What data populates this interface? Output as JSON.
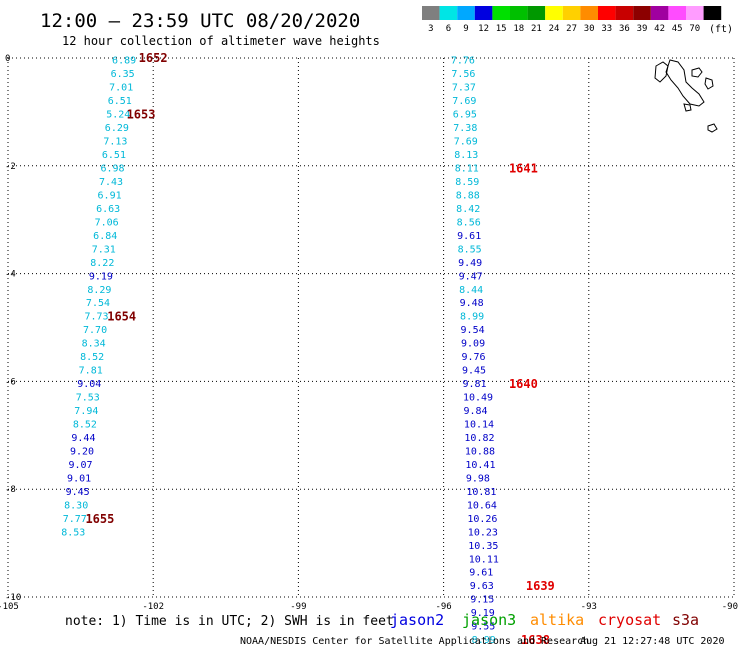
{
  "header": {
    "title": "12:00 — 23:59 UTC 08/20/2020",
    "subtitle": "12 hour collection of altimeter wave heights"
  },
  "scale_bar": {
    "unit": "(ft)",
    "swatches": [
      {
        "label": "3",
        "color": "#7f7f7f"
      },
      {
        "label": "6",
        "color": "#00e5e5"
      },
      {
        "label": "9",
        "color": "#00a8ff"
      },
      {
        "label": "12",
        "color": "#0000e0"
      },
      {
        "label": "15",
        "color": "#00e000"
      },
      {
        "label": "18",
        "color": "#00c000"
      },
      {
        "label": "21",
        "color": "#009800"
      },
      {
        "label": "24",
        "color": "#ffff00"
      },
      {
        "label": "27",
        "color": "#ffd000"
      },
      {
        "label": "30",
        "color": "#ff8c00"
      },
      {
        "label": "33",
        "color": "#ff0000"
      },
      {
        "label": "36",
        "color": "#c80000"
      },
      {
        "label": "39",
        "color": "#8c0000"
      },
      {
        "label": "42",
        "color": "#a000a0"
      },
      {
        "label": "45",
        "color": "#ff4cff"
      },
      {
        "label": "70",
        "color": "#ff9cff"
      },
      {
        "label": "",
        "color": "#000000"
      }
    ]
  },
  "map": {
    "lon_range": [
      -105,
      -90
    ],
    "lat_range": [
      -10,
      0
    ],
    "lon_ticks": [
      "-105",
      "-102",
      "-99",
      "-96",
      "-93",
      "-90"
    ],
    "lat_ticks": [
      "0",
      "-2",
      "-4",
      "-6",
      "-8",
      "-10"
    ],
    "tracks": [
      {
        "color_light": "#00b8d8",
        "color_dark": "#0000c8",
        "points": [
          {
            "lon": -102.85,
            "lat": -0.05,
            "v": "6.89",
            "c": 0
          },
          {
            "lon": -102.88,
            "lat": -0.3,
            "v": "6.35",
            "c": 0
          },
          {
            "lon": -102.91,
            "lat": -0.55,
            "v": "7.01",
            "c": 0
          },
          {
            "lon": -102.94,
            "lat": -0.8,
            "v": "6.51",
            "c": 0
          },
          {
            "lon": -102.97,
            "lat": -1.05,
            "v": "5.24",
            "c": 0
          },
          {
            "lon": -103.0,
            "lat": -1.3,
            "v": "6.29",
            "c": 0
          },
          {
            "lon": -103.03,
            "lat": -1.55,
            "v": "7.13",
            "c": 0
          },
          {
            "lon": -103.06,
            "lat": -1.8,
            "v": "6.51",
            "c": 0
          },
          {
            "lon": -103.09,
            "lat": -2.05,
            "v": "6.98",
            "c": 0
          },
          {
            "lon": -103.12,
            "lat": -2.3,
            "v": "7.43",
            "c": 0
          },
          {
            "lon": -103.15,
            "lat": -2.55,
            "v": "6.91",
            "c": 0
          },
          {
            "lon": -103.18,
            "lat": -2.8,
            "v": "6.63",
            "c": 0
          },
          {
            "lon": -103.21,
            "lat": -3.05,
            "v": "7.06",
            "c": 0
          },
          {
            "lon": -103.24,
            "lat": -3.3,
            "v": "6.84",
            "c": 0
          },
          {
            "lon": -103.27,
            "lat": -3.55,
            "v": "7.31",
            "c": 0
          },
          {
            "lon": -103.3,
            "lat": -3.8,
            "v": "8.22",
            "c": 0
          },
          {
            "lon": -103.33,
            "lat": -4.05,
            "v": "9.19",
            "c": 1
          },
          {
            "lon": -103.36,
            "lat": -4.3,
            "v": "8.29",
            "c": 0
          },
          {
            "lon": -103.39,
            "lat": -4.55,
            "v": "7.54",
            "c": 0
          },
          {
            "lon": -103.42,
            "lat": -4.8,
            "v": "7.73",
            "c": 0
          },
          {
            "lon": -103.45,
            "lat": -5.05,
            "v": "7.70",
            "c": 0
          },
          {
            "lon": -103.48,
            "lat": -5.3,
            "v": "8.34",
            "c": 0
          },
          {
            "lon": -103.51,
            "lat": -5.55,
            "v": "8.52",
            "c": 0
          },
          {
            "lon": -103.54,
            "lat": -5.8,
            "v": "7.81",
            "c": 0
          },
          {
            "lon": -103.57,
            "lat": -6.05,
            "v": "9.04",
            "c": 1
          },
          {
            "lon": -103.6,
            "lat": -6.3,
            "v": "7.53",
            "c": 0
          },
          {
            "lon": -103.63,
            "lat": -6.55,
            "v": "7.94",
            "c": 0
          },
          {
            "lon": -103.66,
            "lat": -6.8,
            "v": "8.52",
            "c": 0
          },
          {
            "lon": -103.69,
            "lat": -7.05,
            "v": "9.44",
            "c": 1
          },
          {
            "lon": -103.72,
            "lat": -7.3,
            "v": "9.20",
            "c": 1
          },
          {
            "lon": -103.75,
            "lat": -7.55,
            "v": "9.07",
            "c": 1
          },
          {
            "lon": -103.78,
            "lat": -7.8,
            "v": "9.01",
            "c": 1
          },
          {
            "lon": -103.81,
            "lat": -8.05,
            "v": "9.45",
            "c": 1
          },
          {
            "lon": -103.84,
            "lat": -8.3,
            "v": "8.30",
            "c": 0
          },
          {
            "lon": -103.87,
            "lat": -8.55,
            "v": "7.77",
            "c": 0
          },
          {
            "lon": -103.9,
            "lat": -8.8,
            "v": "8.53",
            "c": 0
          }
        ]
      },
      {
        "color_light": "#00b8d8",
        "color_dark": "#0000c8",
        "points": [
          {
            "lon": -95.85,
            "lat": -0.05,
            "v": "7.76",
            "c": 0
          },
          {
            "lon": -95.84,
            "lat": -0.3,
            "v": "7.56",
            "c": 0
          },
          {
            "lon": -95.83,
            "lat": -0.55,
            "v": "7.37",
            "c": 0
          },
          {
            "lon": -95.82,
            "lat": -0.8,
            "v": "7.69",
            "c": 0
          },
          {
            "lon": -95.81,
            "lat": -1.05,
            "v": "6.95",
            "c": 0
          },
          {
            "lon": -95.8,
            "lat": -1.3,
            "v": "7.38",
            "c": 0
          },
          {
            "lon": -95.79,
            "lat": -1.55,
            "v": "7.69",
            "c": 0
          },
          {
            "lon": -95.78,
            "lat": -1.8,
            "v": "8.13",
            "c": 0
          },
          {
            "lon": -95.77,
            "lat": -2.05,
            "v": "8.11",
            "c": 0
          },
          {
            "lon": -95.76,
            "lat": -2.3,
            "v": "8.59",
            "c": 0
          },
          {
            "lon": -95.75,
            "lat": -2.55,
            "v": "8.88",
            "c": 0
          },
          {
            "lon": -95.74,
            "lat": -2.8,
            "v": "8.42",
            "c": 0
          },
          {
            "lon": -95.73,
            "lat": -3.05,
            "v": "8.56",
            "c": 0
          },
          {
            "lon": -95.72,
            "lat": -3.3,
            "v": "9.61",
            "c": 1
          },
          {
            "lon": -95.71,
            "lat": -3.55,
            "v": "8.55",
            "c": 0
          },
          {
            "lon": -95.7,
            "lat": -3.8,
            "v": "9.49",
            "c": 1
          },
          {
            "lon": -95.69,
            "lat": -4.05,
            "v": "9.47",
            "c": 1
          },
          {
            "lon": -95.68,
            "lat": -4.3,
            "v": "8.44",
            "c": 0
          },
          {
            "lon": -95.67,
            "lat": -4.55,
            "v": "9.48",
            "c": 1
          },
          {
            "lon": -95.66,
            "lat": -4.8,
            "v": "8.99",
            "c": 0
          },
          {
            "lon": -95.65,
            "lat": -5.05,
            "v": "9.54",
            "c": 1
          },
          {
            "lon": -95.64,
            "lat": -5.3,
            "v": "9.09",
            "c": 1
          },
          {
            "lon": -95.63,
            "lat": -5.55,
            "v": "9.76",
            "c": 1
          },
          {
            "lon": -95.62,
            "lat": -5.8,
            "v": "9.45",
            "c": 1
          },
          {
            "lon": -95.61,
            "lat": -6.05,
            "v": "9.81",
            "c": 1
          },
          {
            "lon": -95.6,
            "lat": -6.3,
            "v": "10.49",
            "c": 1
          },
          {
            "lon": -95.59,
            "lat": -6.55,
            "v": "9.84",
            "c": 1
          },
          {
            "lon": -95.58,
            "lat": -6.8,
            "v": "10.14",
            "c": 1
          },
          {
            "lon": -95.57,
            "lat": -7.05,
            "v": "10.82",
            "c": 1
          },
          {
            "lon": -95.56,
            "lat": -7.3,
            "v": "10.88",
            "c": 1
          },
          {
            "lon": -95.55,
            "lat": -7.55,
            "v": "10.41",
            "c": 1
          },
          {
            "lon": -95.54,
            "lat": -7.8,
            "v": "9.98",
            "c": 1
          },
          {
            "lon": -95.53,
            "lat": -8.05,
            "v": "10.81",
            "c": 1
          },
          {
            "lon": -95.52,
            "lat": -8.3,
            "v": "10.64",
            "c": 1
          },
          {
            "lon": -95.51,
            "lat": -8.55,
            "v": "10.26",
            "c": 1
          },
          {
            "lon": -95.5,
            "lat": -8.8,
            "v": "10.23",
            "c": 1
          },
          {
            "lon": -95.49,
            "lat": -9.05,
            "v": "10.35",
            "c": 1
          },
          {
            "lon": -95.48,
            "lat": -9.3,
            "v": "10.11",
            "c": 1
          },
          {
            "lon": -95.47,
            "lat": -9.55,
            "v": "9.61",
            "c": 1
          },
          {
            "lon": -95.46,
            "lat": -9.8,
            "v": "9.63",
            "c": 1
          },
          {
            "lon": -95.45,
            "lat": -10.05,
            "v": "9.15",
            "c": 1
          },
          {
            "lon": -95.44,
            "lat": -10.3,
            "v": "9.19",
            "c": 1
          },
          {
            "lon": -95.43,
            "lat": -10.55,
            "v": "9.55",
            "c": 1
          },
          {
            "lon": -95.42,
            "lat": -10.8,
            "v": "8.99",
            "c": 0
          }
        ]
      }
    ],
    "time_labels": [
      {
        "text": "1652",
        "lon": -102.3,
        "lat": 0.0,
        "color": "#800000"
      },
      {
        "text": "1653",
        "lon": -102.55,
        "lat": -1.05,
        "color": "#800000"
      },
      {
        "text": "1654",
        "lon": -102.95,
        "lat": -4.8,
        "color": "#800000"
      },
      {
        "text": "1655",
        "lon": -103.4,
        "lat": -8.55,
        "color": "#800000"
      },
      {
        "text": "1641",
        "lon": -94.65,
        "lat": -2.05,
        "color": "#e00000"
      },
      {
        "text": "1640",
        "lon": -94.65,
        "lat": -6.05,
        "color": "#e00000"
      },
      {
        "text": "1639",
        "lon": -94.3,
        "lat": -9.8,
        "color": "#e00000"
      },
      {
        "text": "1638",
        "lon": -94.4,
        "lat": -10.8,
        "color": "#e00000"
      }
    ]
  },
  "footer": {
    "note": "note: 1) Time is in UTC; 2) SWH is in feet",
    "satellites": [
      {
        "name": "jason2",
        "color": "#0000e0"
      },
      {
        "name": "jason3",
        "color": "#00a000"
      },
      {
        "name": "altika",
        "color": "#ff8c00"
      },
      {
        "name": "cryosat",
        "color": "#e00000"
      },
      {
        "name": "s3a",
        "color": "#800000"
      }
    ],
    "credit": "NOAA/NESDIS Center for Satellite Applications and Research",
    "timestamp": "Aug 21 12:27:48 UTC 2020"
  }
}
